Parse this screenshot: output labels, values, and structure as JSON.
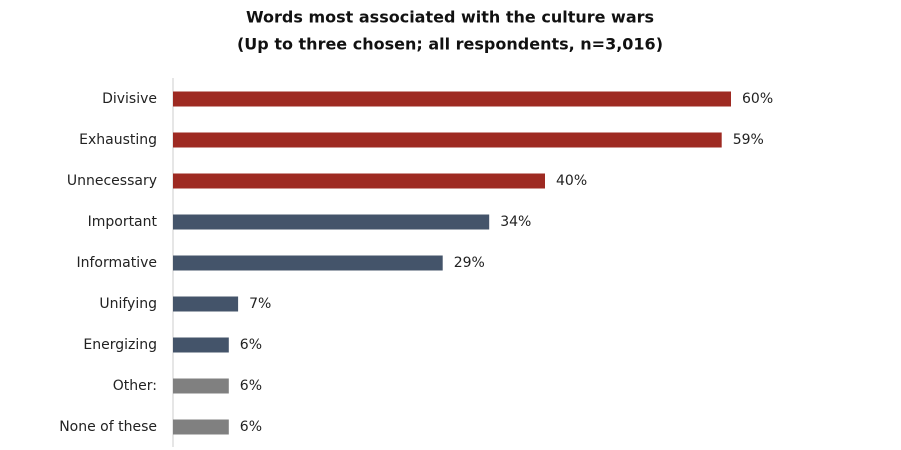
{
  "chart_data": {
    "type": "bar",
    "orientation": "horizontal",
    "title": "Words most associated with the culture wars",
    "subtitle": "(Up to three chosen; all respondents, n=3,016)",
    "categories": [
      "Divisive",
      "Exhausting",
      "Unnecessary",
      "Important",
      "Informative",
      "Unifying",
      "Energizing",
      "Other:",
      "None of these"
    ],
    "values": [
      60,
      59,
      40,
      34,
      29,
      7,
      6,
      6,
      6
    ],
    "value_labels": [
      "60%",
      "59%",
      "40%",
      "34%",
      "29%",
      "7%",
      "6%",
      "6%",
      "6%"
    ],
    "colors": [
      "#9e2a22",
      "#9e2a22",
      "#9e2a22",
      "#44546a",
      "#44546a",
      "#44546a",
      "#44546a",
      "#808080",
      "#808080"
    ]
  }
}
